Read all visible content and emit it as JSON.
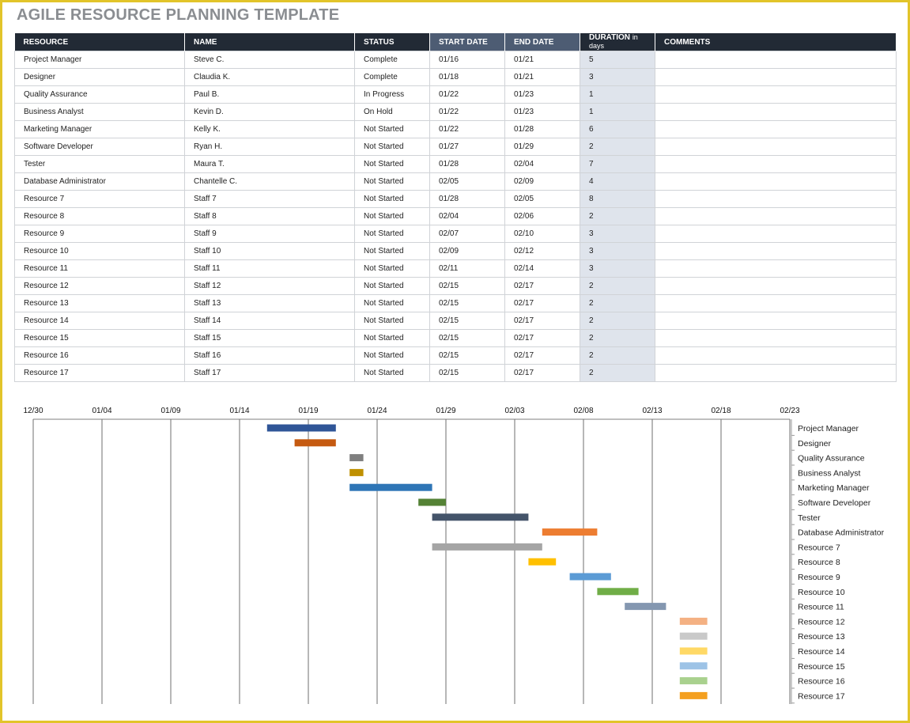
{
  "page": {
    "title": "AGILE RESOURCE PLANNING TEMPLATE"
  },
  "table": {
    "headers": {
      "resource": "RESOURCE",
      "name": "NAME",
      "status": "STATUS",
      "start": "START DATE",
      "end": "END DATE",
      "duration": "DURATION",
      "duration_unit": "in days",
      "comments": "COMMENTS"
    },
    "rows": [
      {
        "resource": "Project Manager",
        "name": "Steve C.",
        "status": "Complete",
        "start": "01/16",
        "end": "01/21",
        "duration": "5",
        "comments": ""
      },
      {
        "resource": "Designer",
        "name": "Claudia K.",
        "status": "Complete",
        "start": "01/18",
        "end": "01/21",
        "duration": "3",
        "comments": ""
      },
      {
        "resource": "Quality Assurance",
        "name": "Paul B.",
        "status": "In Progress",
        "start": "01/22",
        "end": "01/23",
        "duration": "1",
        "comments": ""
      },
      {
        "resource": "Business Analyst",
        "name": "Kevin D.",
        "status": "On Hold",
        "start": "01/22",
        "end": "01/23",
        "duration": "1",
        "comments": ""
      },
      {
        "resource": "Marketing Manager",
        "name": "Kelly K.",
        "status": "Not Started",
        "start": "01/22",
        "end": "01/28",
        "duration": "6",
        "comments": ""
      },
      {
        "resource": "Software Developer",
        "name": "Ryan H.",
        "status": "Not Started",
        "start": "01/27",
        "end": "01/29",
        "duration": "2",
        "comments": ""
      },
      {
        "resource": "Tester",
        "name": "Maura T.",
        "status": "Not Started",
        "start": "01/28",
        "end": "02/04",
        "duration": "7",
        "comments": ""
      },
      {
        "resource": "Database Administrator",
        "name": "Chantelle C.",
        "status": "Not Started",
        "start": "02/05",
        "end": "02/09",
        "duration": "4",
        "comments": ""
      },
      {
        "resource": "Resource 7",
        "name": "Staff 7",
        "status": "Not Started",
        "start": "01/28",
        "end": "02/05",
        "duration": "8",
        "comments": ""
      },
      {
        "resource": "Resource 8",
        "name": "Staff 8",
        "status": "Not Started",
        "start": "02/04",
        "end": "02/06",
        "duration": "2",
        "comments": ""
      },
      {
        "resource": "Resource 9",
        "name": "Staff 9",
        "status": "Not Started",
        "start": "02/07",
        "end": "02/10",
        "duration": "3",
        "comments": ""
      },
      {
        "resource": "Resource 10",
        "name": "Staff 10",
        "status": "Not Started",
        "start": "02/09",
        "end": "02/12",
        "duration": "3",
        "comments": ""
      },
      {
        "resource": "Resource 11",
        "name": "Staff 11",
        "status": "Not Started",
        "start": "02/11",
        "end": "02/14",
        "duration": "3",
        "comments": ""
      },
      {
        "resource": "Resource 12",
        "name": "Staff 12",
        "status": "Not Started",
        "start": "02/15",
        "end": "02/17",
        "duration": "2",
        "comments": ""
      },
      {
        "resource": "Resource 13",
        "name": "Staff 13",
        "status": "Not Started",
        "start": "02/15",
        "end": "02/17",
        "duration": "2",
        "comments": ""
      },
      {
        "resource": "Resource 14",
        "name": "Staff 14",
        "status": "Not Started",
        "start": "02/15",
        "end": "02/17",
        "duration": "2",
        "comments": ""
      },
      {
        "resource": "Resource 15",
        "name": "Staff 15",
        "status": "Not Started",
        "start": "02/15",
        "end": "02/17",
        "duration": "2",
        "comments": ""
      },
      {
        "resource": "Resource 16",
        "name": "Staff 16",
        "status": "Not Started",
        "start": "02/15",
        "end": "02/17",
        "duration": "2",
        "comments": ""
      },
      {
        "resource": "Resource 17",
        "name": "Staff 17",
        "status": "Not Started",
        "start": "02/15",
        "end": "02/17",
        "duration": "2",
        "comments": ""
      }
    ]
  },
  "chart_data": {
    "type": "bar",
    "orientation": "horizontal-gantt",
    "x_ticks": [
      "12/30",
      "01/04",
      "01/09",
      "01/14",
      "01/19",
      "01/24",
      "01/29",
      "02/03",
      "02/08",
      "02/13",
      "02/18",
      "02/23"
    ],
    "xlim": [
      "12/30",
      "02/23"
    ],
    "x_axis_position": "top",
    "grid": "vertical",
    "categories": [
      "Project Manager",
      "Designer",
      "Quality Assurance",
      "Business Analyst",
      "Marketing Manager",
      "Software Developer",
      "Tester",
      "Database Administrator",
      "Resource 7",
      "Resource 8",
      "Resource 9",
      "Resource 10",
      "Resource 11",
      "Resource 12",
      "Resource 13",
      "Resource 14",
      "Resource 15",
      "Resource 16",
      "Resource 17"
    ],
    "bars": [
      {
        "start": "01/16",
        "end": "01/21",
        "color": "#2f5597"
      },
      {
        "start": "01/18",
        "end": "01/21",
        "color": "#c55a11"
      },
      {
        "start": "01/22",
        "end": "01/23",
        "color": "#7f7f7f"
      },
      {
        "start": "01/22",
        "end": "01/23",
        "color": "#bf9000"
      },
      {
        "start": "01/22",
        "end": "01/28",
        "color": "#2e75b6"
      },
      {
        "start": "01/27",
        "end": "01/29",
        "color": "#548235"
      },
      {
        "start": "01/28",
        "end": "02/04",
        "color": "#44546a"
      },
      {
        "start": "02/05",
        "end": "02/09",
        "color": "#ed7d31"
      },
      {
        "start": "01/28",
        "end": "02/05",
        "color": "#a5a5a5"
      },
      {
        "start": "02/04",
        "end": "02/06",
        "color": "#ffc000"
      },
      {
        "start": "02/07",
        "end": "02/10",
        "color": "#5b9bd5"
      },
      {
        "start": "02/09",
        "end": "02/12",
        "color": "#70ad47"
      },
      {
        "start": "02/11",
        "end": "02/14",
        "color": "#8497b0"
      },
      {
        "start": "02/15",
        "end": "02/17",
        "color": "#f4b183"
      },
      {
        "start": "02/15",
        "end": "02/17",
        "color": "#c9c9c9"
      },
      {
        "start": "02/15",
        "end": "02/17",
        "color": "#ffd966"
      },
      {
        "start": "02/15",
        "end": "02/17",
        "color": "#9dc3e6"
      },
      {
        "start": "02/15",
        "end": "02/17",
        "color": "#a9d18e"
      },
      {
        "start": "02/15",
        "end": "02/17",
        "color": "#f4a020"
      }
    ]
  }
}
